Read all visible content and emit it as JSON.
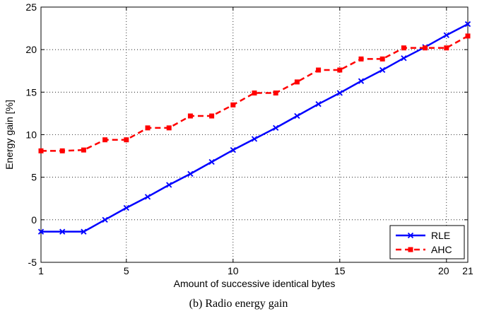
{
  "caption": "(b) Radio energy gain",
  "chart_data": {
    "type": "line",
    "title": "",
    "xlabel": "Amount of successive identical bytes",
    "ylabel": "Energy gain [%]",
    "xlim": [
      1,
      21
    ],
    "ylim": [
      -5,
      25
    ],
    "xticks": [
      1,
      5,
      10,
      15,
      20,
      21
    ],
    "yticks": [
      -5,
      0,
      5,
      10,
      15,
      20,
      25
    ],
    "grid": true,
    "legend_position": "bottom-right",
    "x": [
      1,
      2,
      3,
      4,
      5,
      6,
      7,
      8,
      9,
      10,
      11,
      12,
      13,
      14,
      15,
      16,
      17,
      18,
      19,
      20,
      21
    ],
    "series": [
      {
        "name": "RLE",
        "color": "#0000ff",
        "line_style": "solid",
        "marker": "x",
        "values": [
          -1.4,
          -1.4,
          -1.4,
          0.0,
          1.4,
          2.7,
          4.1,
          5.4,
          6.8,
          8.2,
          9.5,
          10.8,
          12.2,
          13.6,
          14.9,
          16.3,
          17.6,
          19.0,
          20.3,
          21.7,
          23.0
        ]
      },
      {
        "name": "AHC",
        "color": "#ff0000",
        "line_style": "dashed",
        "marker": "square",
        "values": [
          8.1,
          8.1,
          8.2,
          9.4,
          9.4,
          10.8,
          10.8,
          12.2,
          12.2,
          13.5,
          14.9,
          14.9,
          16.2,
          17.6,
          17.6,
          18.9,
          18.9,
          20.2,
          20.2,
          20.2,
          21.6
        ]
      }
    ]
  }
}
